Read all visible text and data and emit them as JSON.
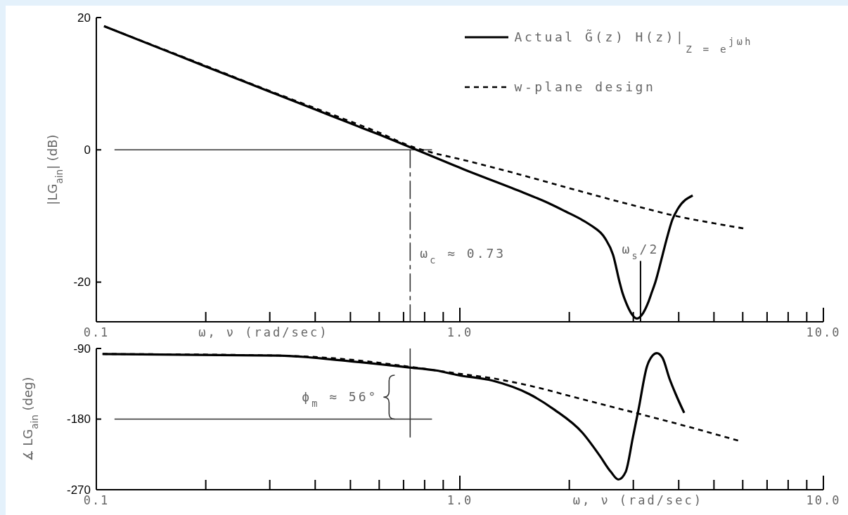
{
  "chart_data": [
    {
      "type": "line",
      "xlabel": "ω, ν (rad/sec)",
      "ylabel": "|LG$_{ain}$| (dB)",
      "log": "x",
      "xlim": [
        0.1,
        10
      ],
      "xticks": [
        0.1,
        {
          "value": 0.2,
          "label": null
        },
        {
          "value": 0.3,
          "label": null
        },
        {
          "value": 0.4,
          "label": null
        },
        {
          "value": 0.5,
          "label": null
        },
        {
          "value": 0.6,
          "label": null
        },
        {
          "value": 0.7,
          "label": null
        },
        {
          "value": 0.8,
          "label": null
        },
        {
          "value": 0.9,
          "label": null
        },
        {
          "value": 1,
          "label": "1.0"
        },
        {
          "value": 2,
          "label": null
        },
        {
          "value": 3,
          "label": null
        },
        {
          "value": 4,
          "label": null
        },
        {
          "value": 5,
          "label": null
        },
        {
          "value": 6,
          "label": null
        },
        {
          "value": 7,
          "label": null
        },
        {
          "value": 8,
          "label": null
        },
        {
          "value": 9,
          "label": null
        },
        {
          "value": 10,
          "label": "10.0"
        }
      ],
      "ylim": [
        -26,
        20
      ],
      "yticks": [
        -20,
        0,
        20
      ],
      "legend": "top right",
      "series": [
        {
          "name": "Actual G̃(z) H(z)|$_{Z = e}$$^{jωh}$",
          "color": "#000000",
          "line_style": "solid",
          "x": [
            0.105,
            0.2,
            0.3,
            0.4,
            0.5,
            0.6,
            0.76,
            1.03,
            1.47,
            1.76,
            1.95,
            2.17,
            2.29,
            2.51,
            2.64,
            2.75,
            2.8,
            2.87,
            2.96,
            3.07,
            3.19,
            3.29,
            3.37,
            3.45,
            3.58,
            3.71,
            3.84,
            3.98,
            4.37
          ],
          "values": [
            18.7,
            12.6,
            8.8,
            6.1,
            4.0,
            2.3,
            0.0,
            -3.0,
            -6.3,
            -8.1,
            -9.3,
            -10.6,
            -11.4,
            -13.4,
            -15.9,
            -20.0,
            -21.6,
            -23.2,
            -24.7,
            -25.5,
            -24.7,
            -23.2,
            -21.6,
            -20.0,
            -16.7,
            -13.4,
            -10.6,
            -8.9,
            -6.9
          ]
        },
        {
          "name": "w-plane design",
          "color": "#000000",
          "line_style": "dashed",
          "x": [
            0.105,
            0.2,
            0.3,
            0.4,
            0.5,
            0.6,
            0.72,
            0.85,
            1.0,
            1.5,
            2.0,
            3.0,
            4.0,
            5.0,
            6.05
          ],
          "values": [
            18.7,
            12.7,
            8.9,
            6.3,
            4.3,
            2.6,
            0.7,
            -0.5,
            -1.4,
            -3.9,
            -5.8,
            -8.4,
            -10.1,
            -11.1,
            -11.9
          ]
        }
      ],
      "ref_lines": [
        {
          "axis": "y",
          "value": 0,
          "color": "#333333"
        },
        {
          "axis": "x",
          "value": 0.73,
          "label": "ω$_{c}$ ≈ 0.73",
          "color": "#333333",
          "line_style": "dashed"
        },
        {
          "axis": "x",
          "value": 3.14,
          "label": "ω$_{s}$/2",
          "color": "#000000"
        }
      ]
    },
    {
      "type": "line",
      "xlabel": "ω, ν (rad/sec)",
      "ylabel": "∡ LG$_{ain}$ (deg)",
      "log": "x",
      "xlim": [
        0.1,
        10
      ],
      "xticks": [
        0.1,
        {
          "value": 0.2,
          "label": null
        },
        {
          "value": 0.3,
          "label": null
        },
        {
          "value": 0.4,
          "label": null
        },
        {
          "value": 0.5,
          "label": null
        },
        {
          "value": 0.6,
          "label": null
        },
        {
          "value": 0.7,
          "label": null
        },
        {
          "value": 0.8,
          "label": null
        },
        {
          "value": 0.9,
          "label": null
        },
        {
          "value": 1,
          "label": "1.0"
        },
        {
          "value": 2,
          "label": null
        },
        {
          "value": 3,
          "label": null
        },
        {
          "value": 4,
          "label": null
        },
        {
          "value": 5,
          "label": null
        },
        {
          "value": 6,
          "label": null
        },
        {
          "value": 7,
          "label": null
        },
        {
          "value": 8,
          "label": null
        },
        {
          "value": 9,
          "label": null
        },
        {
          "value": 10,
          "label": "10.0"
        }
      ],
      "ylim": [
        -270,
        -90
      ],
      "yticks": [
        -270,
        -180,
        -90
      ],
      "series": [
        {
          "color": "#000000",
          "line_style": "solid",
          "x": [
            0.104,
            0.317,
            0.493,
            0.72,
            0.86,
            0.99,
            1.23,
            1.55,
            1.82,
            2.17,
            2.42,
            2.6,
            2.73,
            2.86,
            2.99,
            3.1,
            3.27,
            3.39,
            3.48,
            3.61,
            3.77,
            3.94,
            4.14
          ],
          "values": [
            -97,
            -99,
            -106,
            -114,
            -118,
            -124,
            -131,
            -148,
            -168,
            -197,
            -226,
            -247,
            -257,
            -247,
            -204,
            -168,
            -113,
            -99,
            -96,
            -102,
            -128,
            -150,
            -172
          ]
        },
        {
          "color": "#000000",
          "line_style": "dashed",
          "x": [
            0.104,
            0.317,
            0.493,
            0.72,
            0.86,
            0.99,
            1.23,
            1.61,
            2.1,
            3.1,
            4.27,
            5.89
          ],
          "values": [
            -97,
            -99,
            -104,
            -113,
            -118,
            -122,
            -128,
            -139,
            -153,
            -173,
            -190,
            -208
          ]
        }
      ],
      "ref_lines": [
        {
          "axis": "y",
          "value": -180,
          "color": "#333333"
        },
        {
          "axis": "x",
          "value": 0.73,
          "color": "#333333"
        }
      ],
      "annotations": [
        {
          "text": "ϕ$_{m}$ ≈ 56°",
          "x": 0.73,
          "y": -152
        }
      ]
    }
  ]
}
